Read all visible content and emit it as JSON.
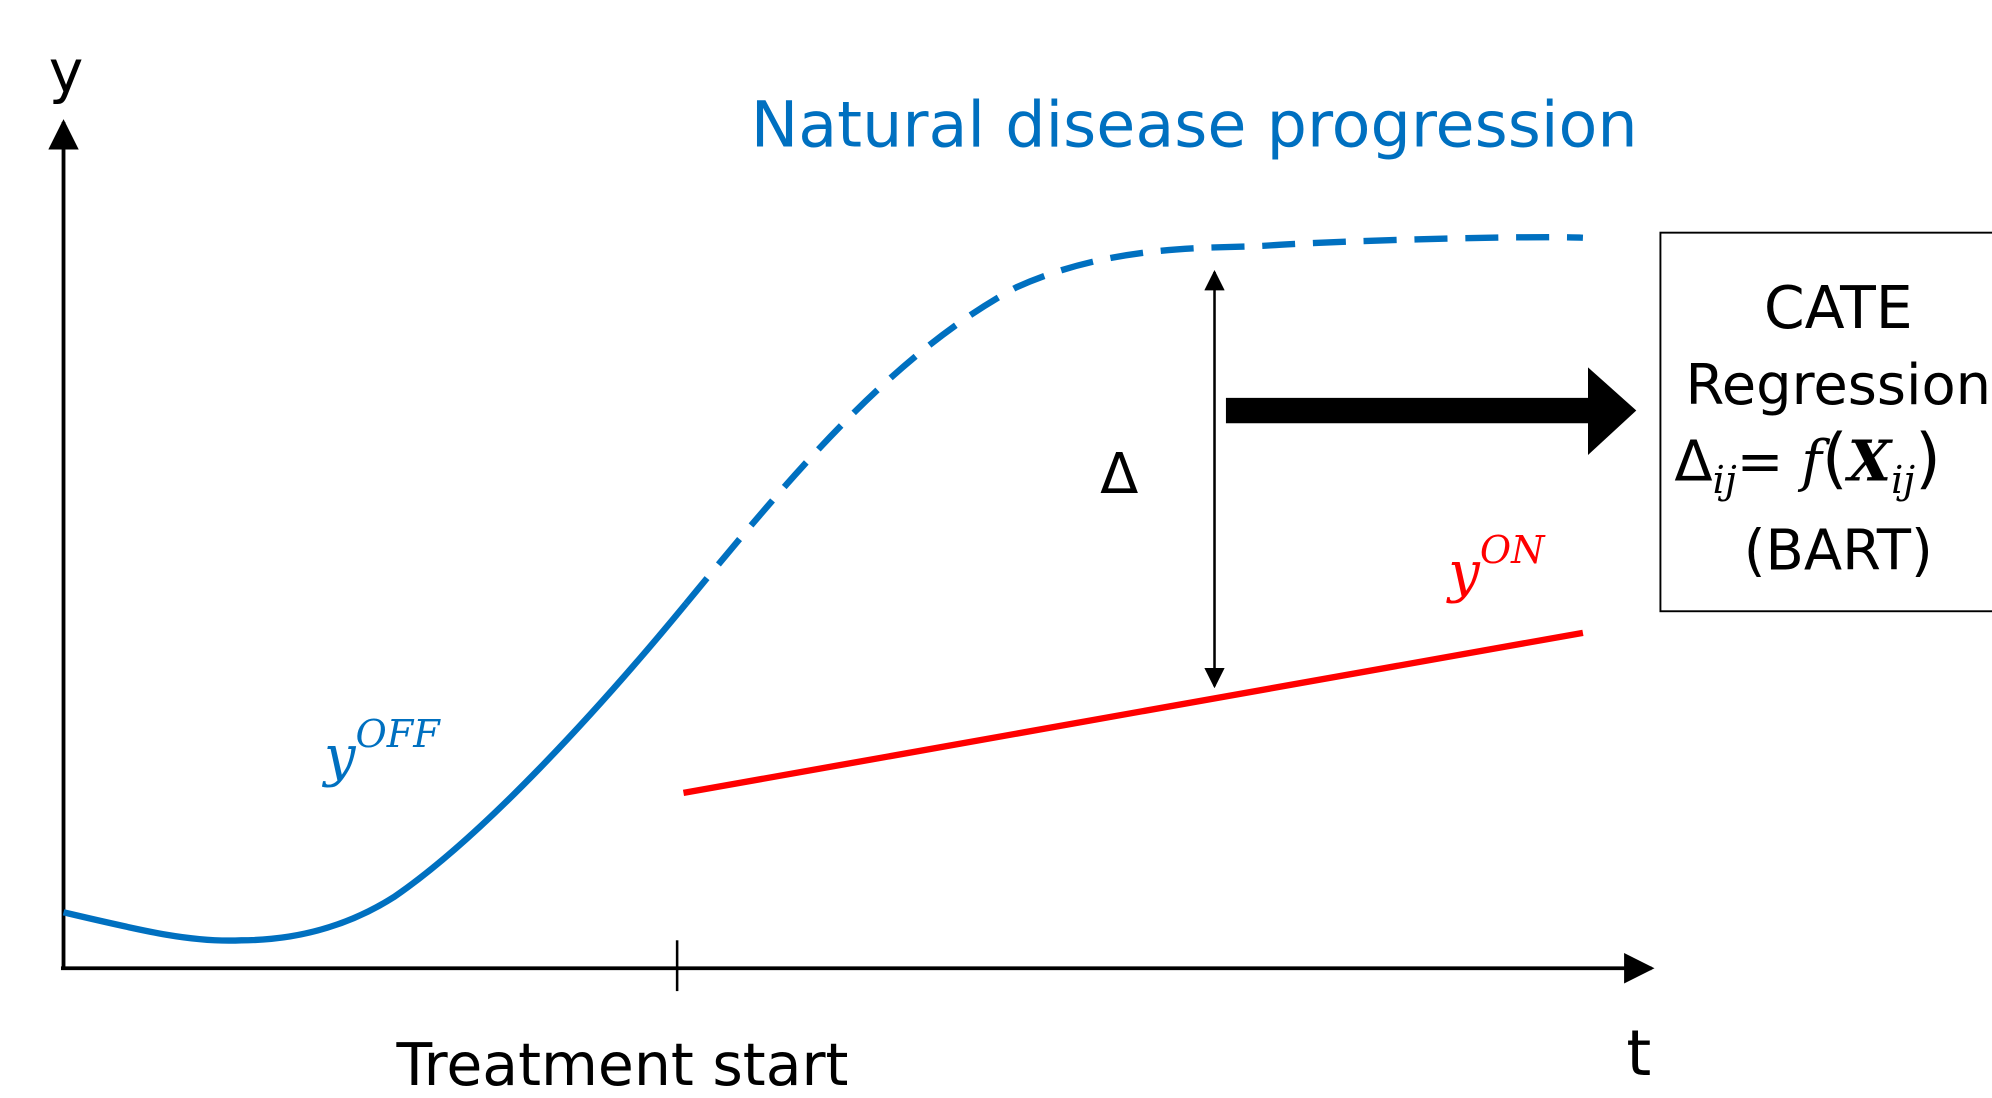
{
  "axes": {
    "y_label": "y",
    "x_label": "t",
    "treatment_label": "Treatment start"
  },
  "title": "Natural disease progression",
  "delta_label": "Δ",
  "off_label": {
    "base": "y",
    "sup": "OFF"
  },
  "on_label": {
    "base": "y",
    "sup": "ON"
  },
  "box": {
    "line1": "CATE",
    "line2": "Regression",
    "formula": {
      "delta": "Δ",
      "delta_sub": "ij",
      "equals": "= ",
      "f": "f",
      "open": "(",
      "x": "X",
      "x_sub": "ij",
      "close": ")"
    },
    "line4": "(BART)"
  }
}
